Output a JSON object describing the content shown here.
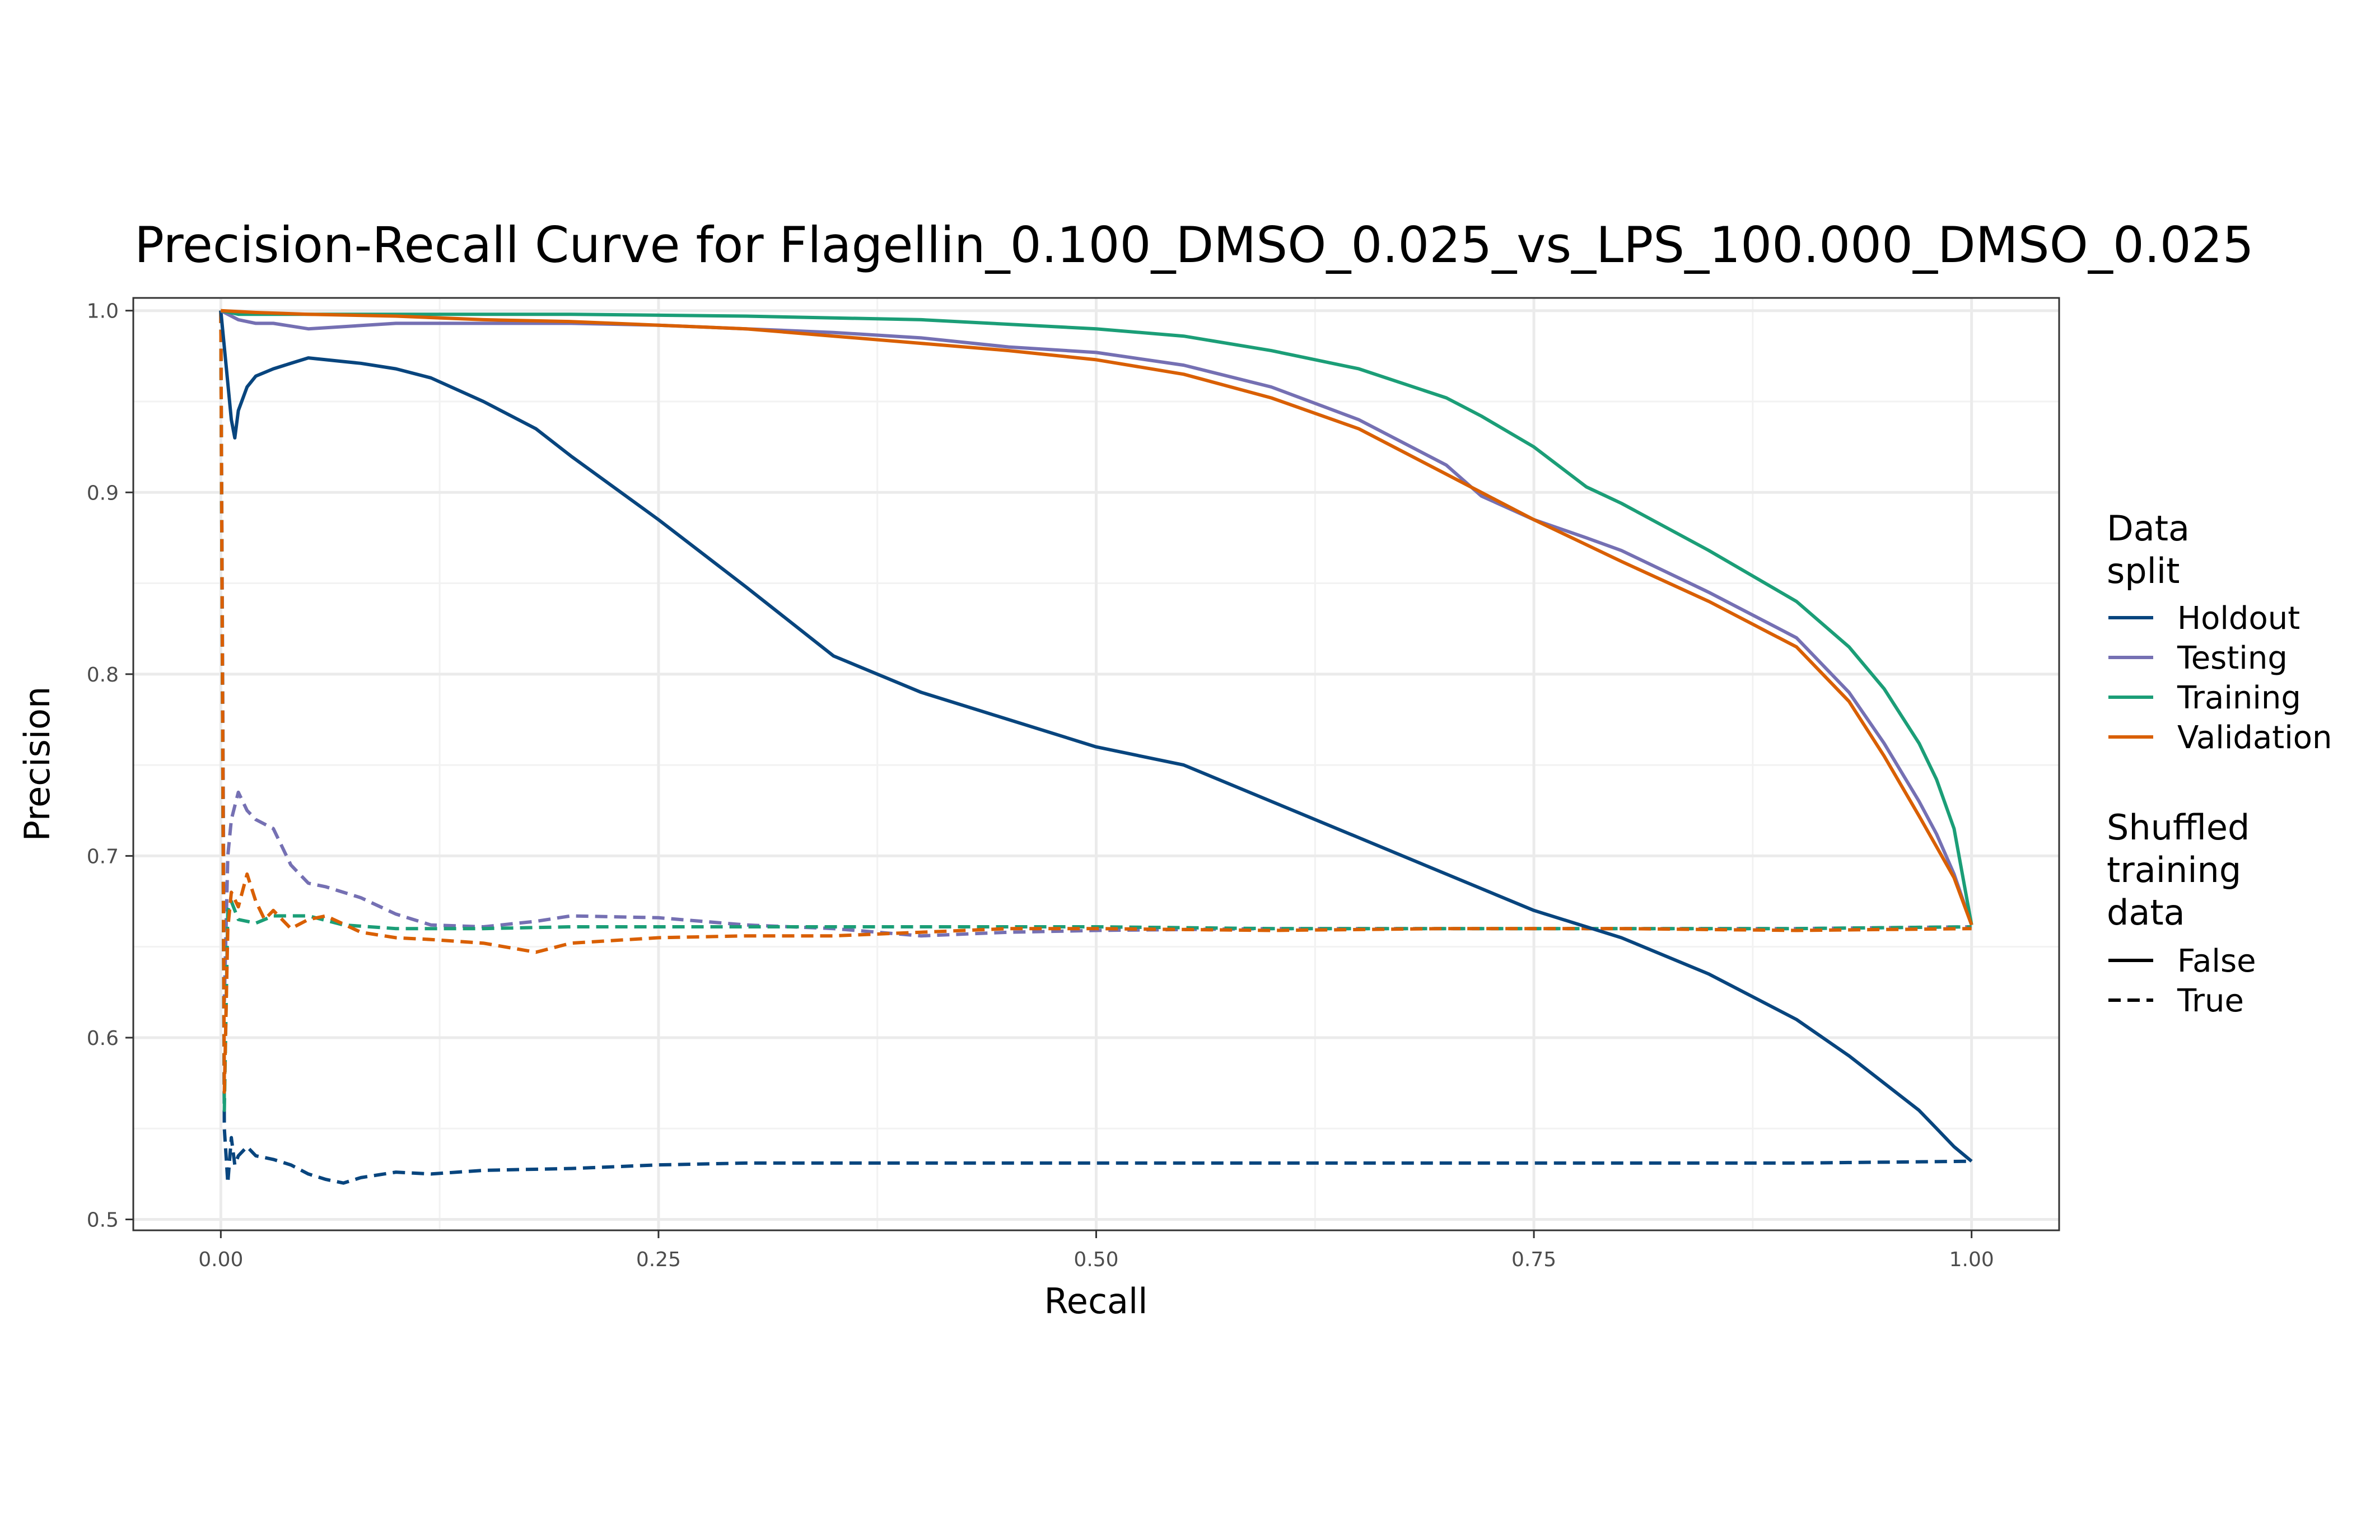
{
  "chart_data": {
    "type": "line",
    "title": "Precision-Recall Curve for Flagellin_0.100_DMSO_0.025_vs_LPS_100.000_DMSO_0.025",
    "xlabel": "Recall",
    "ylabel": "Precision",
    "xlim": [
      -0.05,
      1.05
    ],
    "ylim": [
      0.494,
      1.007
    ],
    "x_ticks": [
      0.0,
      0.25,
      0.5,
      0.75,
      1.0
    ],
    "x_tick_labels": [
      "0.00",
      "0.25",
      "0.50",
      "0.75",
      "1.00"
    ],
    "y_ticks": [
      0.5,
      0.6,
      0.7,
      0.8,
      0.9,
      1.0
    ],
    "y_tick_labels": [
      "0.5",
      "0.6",
      "0.7",
      "0.8",
      "0.9",
      "1.0"
    ],
    "grid": true,
    "legend_position": "right",
    "legend": {
      "color_title": [
        "Data",
        "split"
      ],
      "color_entries": [
        {
          "label": "Holdout",
          "color": "#08457e"
        },
        {
          "label": "Testing",
          "color": "#7570b3"
        },
        {
          "label": "Training",
          "color": "#1b9e77"
        },
        {
          "label": "Validation",
          "color": "#d95f02"
        }
      ],
      "linetype_title": [
        "Shuffled",
        "training",
        "data"
      ],
      "linetype_entries": [
        {
          "label": "False",
          "linetype": "solid"
        },
        {
          "label": "True",
          "linetype": "dashed"
        }
      ]
    },
    "series": [
      {
        "split": "Holdout",
        "shuffled": "False",
        "color": "#08457e",
        "linetype": "solid",
        "x": [
          0,
          0.003,
          0.006,
          0.008,
          0.01,
          0.015,
          0.02,
          0.03,
          0.04,
          0.05,
          0.06,
          0.07,
          0.08,
          0.1,
          0.12,
          0.15,
          0.18,
          0.2,
          0.25,
          0.3,
          0.35,
          0.4,
          0.45,
          0.5,
          0.55,
          0.6,
          0.65,
          0.7,
          0.75,
          0.8,
          0.85,
          0.9,
          0.93,
          0.95,
          0.97,
          0.98,
          0.99,
          1.0
        ],
        "y": [
          1.0,
          0.97,
          0.94,
          0.93,
          0.945,
          0.958,
          0.964,
          0.968,
          0.971,
          0.974,
          0.973,
          0.972,
          0.971,
          0.968,
          0.963,
          0.95,
          0.935,
          0.92,
          0.885,
          0.848,
          0.81,
          0.79,
          0.775,
          0.76,
          0.75,
          0.73,
          0.71,
          0.69,
          0.67,
          0.655,
          0.635,
          0.61,
          0.59,
          0.575,
          0.56,
          0.55,
          0.54,
          0.532
        ]
      },
      {
        "split": "Testing",
        "shuffled": "False",
        "color": "#7570b3",
        "linetype": "solid",
        "x": [
          0,
          0.01,
          0.02,
          0.03,
          0.05,
          0.1,
          0.15,
          0.2,
          0.25,
          0.3,
          0.35,
          0.4,
          0.45,
          0.5,
          0.55,
          0.6,
          0.65,
          0.7,
          0.72,
          0.75,
          0.78,
          0.8,
          0.85,
          0.9,
          0.93,
          0.95,
          0.97,
          0.98,
          0.99,
          1.0
        ],
        "y": [
          1.0,
          0.995,
          0.993,
          0.993,
          0.99,
          0.993,
          0.993,
          0.993,
          0.992,
          0.99,
          0.988,
          0.985,
          0.98,
          0.977,
          0.97,
          0.958,
          0.94,
          0.915,
          0.898,
          0.885,
          0.875,
          0.868,
          0.845,
          0.82,
          0.79,
          0.762,
          0.73,
          0.712,
          0.69,
          0.662
        ]
      },
      {
        "split": "Training",
        "shuffled": "False",
        "color": "#1b9e77",
        "linetype": "solid",
        "x": [
          0,
          0.01,
          0.02,
          0.05,
          0.1,
          0.2,
          0.3,
          0.4,
          0.5,
          0.55,
          0.6,
          0.65,
          0.7,
          0.72,
          0.75,
          0.78,
          0.8,
          0.85,
          0.9,
          0.93,
          0.95,
          0.97,
          0.98,
          0.99,
          1.0
        ],
        "y": [
          1.0,
          0.998,
          0.998,
          0.998,
          0.998,
          0.998,
          0.997,
          0.995,
          0.99,
          0.986,
          0.978,
          0.968,
          0.952,
          0.942,
          0.925,
          0.903,
          0.894,
          0.868,
          0.84,
          0.815,
          0.792,
          0.762,
          0.742,
          0.715,
          0.662
        ]
      },
      {
        "split": "Validation",
        "shuffled": "False",
        "color": "#d95f02",
        "linetype": "solid",
        "x": [
          0,
          0.02,
          0.05,
          0.1,
          0.15,
          0.2,
          0.25,
          0.3,
          0.35,
          0.4,
          0.45,
          0.5,
          0.55,
          0.6,
          0.65,
          0.7,
          0.72,
          0.75,
          0.8,
          0.85,
          0.9,
          0.93,
          0.95,
          0.97,
          0.98,
          0.99,
          1.0
        ],
        "y": [
          1.0,
          0.999,
          0.998,
          0.997,
          0.995,
          0.994,
          0.992,
          0.99,
          0.986,
          0.982,
          0.978,
          0.973,
          0.965,
          0.952,
          0.935,
          0.91,
          0.9,
          0.885,
          0.862,
          0.84,
          0.815,
          0.785,
          0.755,
          0.722,
          0.705,
          0.688,
          0.662
        ]
      },
      {
        "split": "Holdout",
        "shuffled": "True",
        "color": "#08457e",
        "linetype": "dashed",
        "x": [
          0,
          0.002,
          0.004,
          0.006,
          0.008,
          0.01,
          0.015,
          0.02,
          0.03,
          0.04,
          0.05,
          0.06,
          0.07,
          0.08,
          0.1,
          0.12,
          0.15,
          0.2,
          0.25,
          0.3,
          0.4,
          0.5,
          0.6,
          0.7,
          0.8,
          0.9,
          1.0
        ],
        "y": [
          1.0,
          0.55,
          0.52,
          0.545,
          0.53,
          0.535,
          0.54,
          0.535,
          0.533,
          0.53,
          0.525,
          0.522,
          0.52,
          0.523,
          0.526,
          0.525,
          0.527,
          0.528,
          0.53,
          0.531,
          0.531,
          0.531,
          0.531,
          0.531,
          0.531,
          0.531,
          0.532
        ]
      },
      {
        "split": "Testing",
        "shuffled": "True",
        "color": "#7570b3",
        "linetype": "dashed",
        "x": [
          0,
          0.002,
          0.004,
          0.006,
          0.01,
          0.015,
          0.02,
          0.03,
          0.04,
          0.05,
          0.06,
          0.08,
          0.1,
          0.12,
          0.15,
          0.18,
          0.2,
          0.25,
          0.3,
          0.35,
          0.4,
          0.45,
          0.5,
          0.6,
          0.7,
          0.8,
          0.9,
          1.0
        ],
        "y": [
          1.0,
          0.62,
          0.7,
          0.72,
          0.735,
          0.725,
          0.72,
          0.715,
          0.695,
          0.685,
          0.683,
          0.677,
          0.668,
          0.662,
          0.661,
          0.664,
          0.667,
          0.666,
          0.662,
          0.66,
          0.656,
          0.658,
          0.659,
          0.66,
          0.66,
          0.66,
          0.66,
          0.661
        ]
      },
      {
        "split": "Training",
        "shuffled": "True",
        "color": "#1b9e77",
        "linetype": "dashed",
        "x": [
          0,
          0.002,
          0.004,
          0.006,
          0.01,
          0.02,
          0.03,
          0.05,
          0.07,
          0.1,
          0.15,
          0.2,
          0.3,
          0.4,
          0.5,
          0.6,
          0.7,
          0.8,
          0.9,
          1.0
        ],
        "y": [
          1.0,
          0.56,
          0.67,
          0.675,
          0.665,
          0.663,
          0.667,
          0.667,
          0.662,
          0.66,
          0.66,
          0.661,
          0.661,
          0.661,
          0.661,
          0.66,
          0.66,
          0.66,
          0.66,
          0.661
        ]
      },
      {
        "split": "Validation",
        "shuffled": "True",
        "color": "#d95f02",
        "linetype": "dashed",
        "x": [
          0,
          0.002,
          0.004,
          0.006,
          0.01,
          0.015,
          0.02,
          0.025,
          0.03,
          0.04,
          0.05,
          0.06,
          0.08,
          0.1,
          0.12,
          0.15,
          0.18,
          0.2,
          0.25,
          0.3,
          0.35,
          0.4,
          0.45,
          0.5,
          0.6,
          0.7,
          0.8,
          0.9,
          1.0
        ],
        "y": [
          1.0,
          0.57,
          0.66,
          0.68,
          0.672,
          0.69,
          0.675,
          0.665,
          0.67,
          0.66,
          0.665,
          0.667,
          0.658,
          0.655,
          0.654,
          0.652,
          0.647,
          0.652,
          0.655,
          0.656,
          0.656,
          0.658,
          0.66,
          0.66,
          0.659,
          0.66,
          0.66,
          0.659,
          0.66
        ]
      }
    ]
  }
}
